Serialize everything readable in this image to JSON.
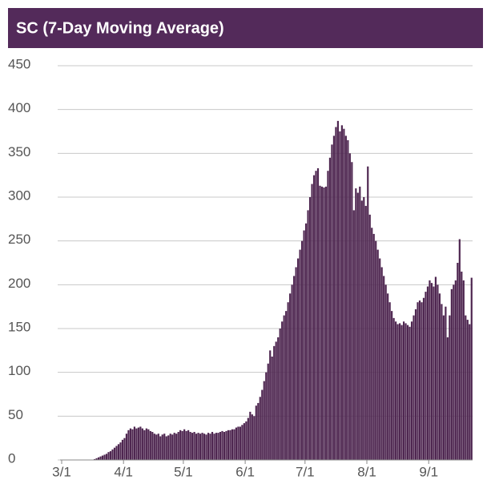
{
  "chart_data": {
    "type": "bar",
    "title": "SC (7-Day Moving Average)",
    "color": "#4e2650",
    "grid": true,
    "ylim": [
      0,
      450
    ],
    "yticks": [
      0,
      50,
      100,
      150,
      200,
      250,
      300,
      350,
      400,
      450
    ],
    "categories": [
      "3/1",
      null,
      null,
      null,
      null,
      null,
      null,
      null,
      null,
      null,
      null,
      null,
      null,
      null,
      null,
      null,
      null,
      null,
      null,
      null,
      null,
      null,
      null,
      null,
      null,
      null,
      null,
      null,
      null,
      null,
      null,
      "4/1",
      null,
      null,
      null,
      null,
      null,
      null,
      null,
      null,
      null,
      null,
      null,
      null,
      null,
      null,
      null,
      null,
      null,
      null,
      null,
      null,
      null,
      null,
      null,
      null,
      null,
      null,
      null,
      null,
      null,
      "5/1",
      null,
      null,
      null,
      null,
      null,
      null,
      null,
      null,
      null,
      null,
      null,
      null,
      null,
      null,
      null,
      null,
      null,
      null,
      null,
      null,
      null,
      null,
      null,
      null,
      null,
      null,
      null,
      null,
      null,
      null,
      "6/1",
      null,
      null,
      null,
      null,
      null,
      null,
      null,
      null,
      null,
      null,
      null,
      null,
      null,
      null,
      null,
      null,
      null,
      null,
      null,
      null,
      null,
      null,
      null,
      null,
      null,
      null,
      null,
      null,
      null,
      "7/1",
      null,
      null,
      null,
      null,
      null,
      null,
      null,
      null,
      null,
      null,
      null,
      null,
      null,
      null,
      null,
      null,
      null,
      null,
      null,
      null,
      null,
      null,
      null,
      null,
      null,
      null,
      null,
      null,
      null,
      null,
      "8/1",
      null,
      null,
      null,
      null,
      null,
      null,
      null,
      null,
      null,
      null,
      null,
      null,
      null,
      null,
      null,
      null,
      null,
      null,
      null,
      null,
      null,
      null,
      null,
      null,
      null,
      null,
      null,
      null,
      null,
      null,
      "9/1",
      null,
      null,
      null,
      null,
      null,
      null,
      null,
      null,
      null,
      null,
      null,
      null,
      null,
      null,
      null,
      null,
      null,
      null,
      null,
      null,
      null
    ],
    "values": [
      0,
      0,
      0,
      0,
      0,
      0,
      0,
      0,
      0,
      0,
      0,
      0,
      0,
      0,
      0,
      0,
      1,
      2,
      3,
      4,
      5,
      6,
      7,
      9,
      10,
      12,
      14,
      16,
      18,
      20,
      23,
      25,
      30,
      34,
      36,
      35,
      38,
      36,
      37,
      38,
      36,
      34,
      36,
      35,
      33,
      32,
      30,
      29,
      30,
      27,
      29,
      30,
      27,
      28,
      30,
      29,
      31,
      30,
      32,
      34,
      33,
      35,
      33,
      34,
      32,
      31,
      32,
      30,
      31,
      30,
      31,
      30,
      29,
      31,
      30,
      32,
      30,
      31,
      31,
      32,
      33,
      32,
      33,
      34,
      34,
      35,
      35,
      37,
      38,
      38,
      40,
      42,
      44,
      48,
      55,
      52,
      50,
      62,
      65,
      72,
      80,
      90,
      100,
      110,
      125,
      118,
      130,
      135,
      140,
      150,
      158,
      165,
      170,
      180,
      190,
      200,
      210,
      220,
      230,
      240,
      250,
      262,
      270,
      285,
      300,
      315,
      325,
      330,
      333,
      313,
      312,
      311,
      312,
      330,
      345,
      360,
      370,
      380,
      387,
      375,
      382,
      378,
      370,
      365,
      350,
      340,
      285,
      310,
      305,
      312,
      296,
      300,
      290,
      335,
      280,
      265,
      258,
      250,
      240,
      230,
      220,
      210,
      200,
      190,
      180,
      170,
      162,
      158,
      155,
      156,
      154,
      158,
      156,
      154,
      152,
      158,
      165,
      172,
      180,
      182,
      180,
      185,
      192,
      198,
      205,
      202,
      198,
      209,
      200,
      190,
      178,
      165,
      175,
      140,
      165,
      195,
      200,
      205,
      225,
      252,
      215,
      205,
      165,
      160,
      155,
      208
    ]
  }
}
